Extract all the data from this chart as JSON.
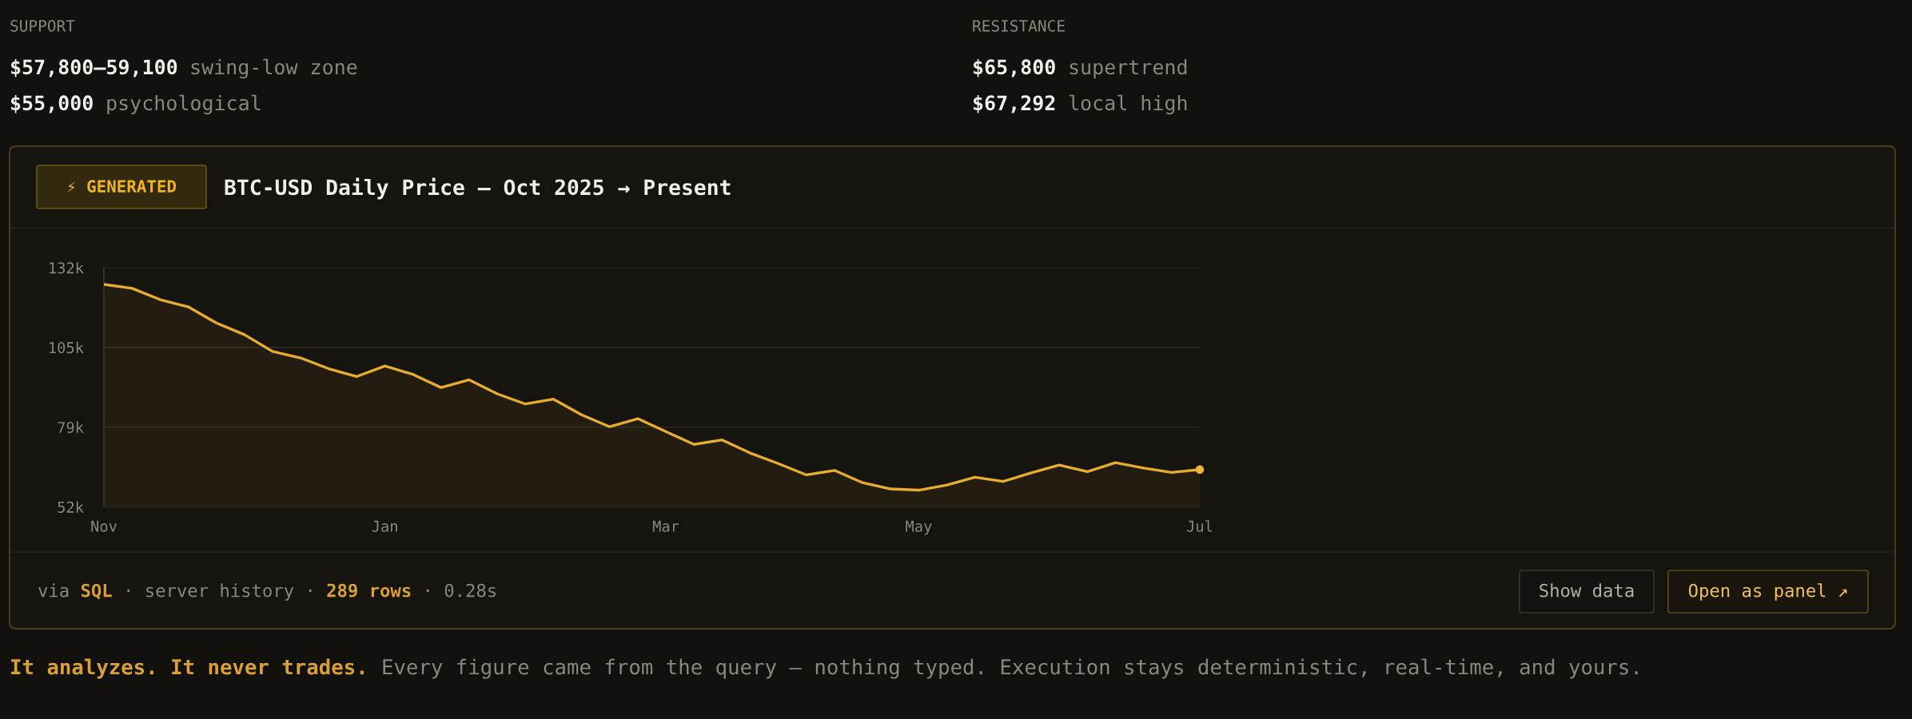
{
  "chart_data": {
    "type": "area",
    "title": "BTC-USD Daily Price — Oct 2025 → Present",
    "annotations": [
      "SUPPORT",
      "$57,800–59,100",
      "swing-low zone",
      "$55,000",
      "psychological",
      "RESISTANCE",
      "$65,800",
      "supertrend",
      "$67,292",
      "local high",
      "⚡ GENERATED",
      "via",
      "SQL",
      "· server history ·",
      "289 rows",
      "· 0.28s",
      "Show data",
      "Open as panel ↗",
      "It analyzes. It never trades.",
      "Every figure came from the query — nothing typed. Execution stays deterministic, real-time, and yours."
    ],
    "categories": [
      "Nov",
      null,
      null,
      null,
      null,
      null,
      null,
      null,
      null,
      null,
      "Jan",
      null,
      null,
      null,
      null,
      null,
      null,
      null,
      null,
      null,
      "Mar",
      null,
      null,
      null,
      null,
      null,
      null,
      null,
      null,
      "May",
      null,
      null,
      null,
      null,
      null,
      null,
      null,
      null,
      null,
      "Jul"
    ],
    "ylim": [
      52000,
      132000
    ],
    "yticks": [
      {
        "value": 52000,
        "label": "52k"
      },
      {
        "value": 78667,
        "label": "79k"
      },
      {
        "value": 105333,
        "label": "105k"
      },
      {
        "value": 132000,
        "label": "132k"
      }
    ],
    "grid": "y",
    "series": [
      {
        "color": "#e9ad2e",
        "values": [
          126400,
          125100,
          121300,
          118900,
          113500,
          109600,
          104000,
          101800,
          98200,
          95600,
          99100,
          96300,
          91900,
          94500,
          89800,
          86400,
          88000,
          82800,
          78800,
          81500,
          77200,
          72900,
          74400,
          70000,
          66500,
          62700,
          64200,
          60100,
          58000,
          57600,
          59300,
          61900,
          60500,
          63400,
          66000,
          63800,
          66800,
          65000,
          63500,
          64500
        ]
      },
      {
        "type": "scatter",
        "color": "#f2b63c",
        "marker": "circle",
        "x": [
          "Jul"
        ],
        "values": [
          64500
        ]
      }
    ]
  }
}
